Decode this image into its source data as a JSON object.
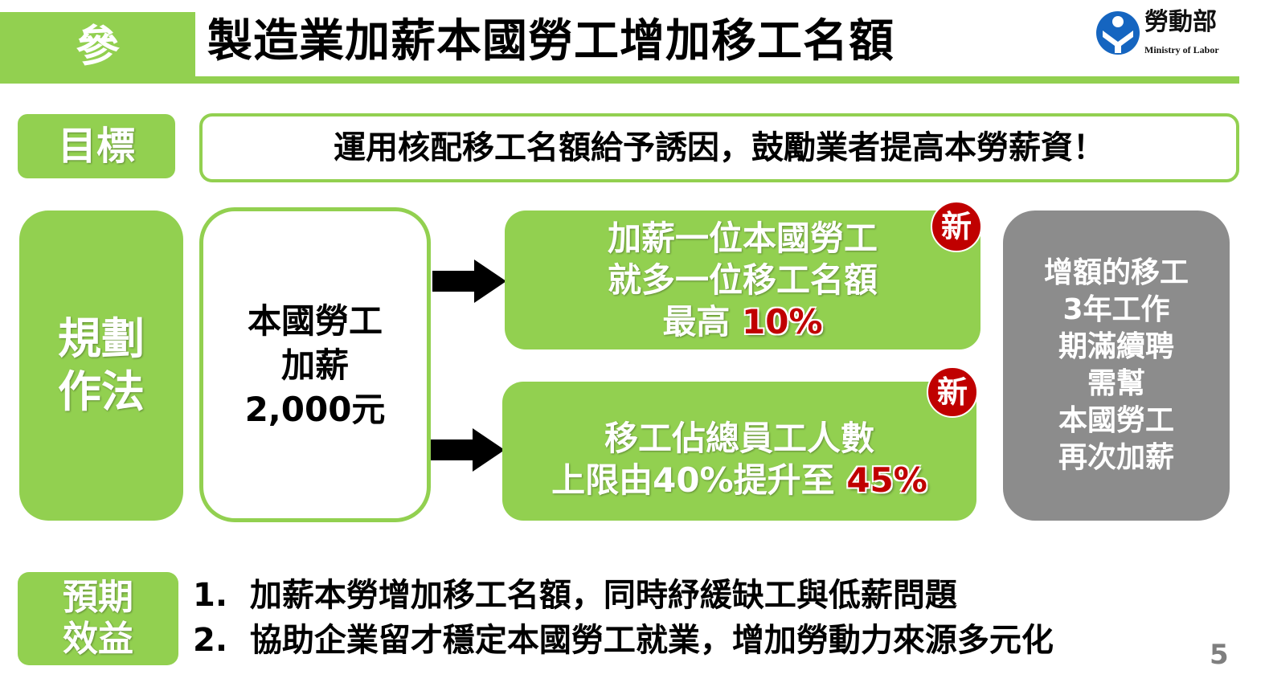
{
  "header": {
    "section_marker": "參",
    "title": "製造業加薪本國勞工增加移工名額",
    "logo": {
      "name_zh": "勞動部",
      "name_en": "Ministry of Labor"
    }
  },
  "goal": {
    "label": "目標",
    "text": "運用核配移工名額給予誘因，鼓勵業者提高本勞薪資！"
  },
  "plan": {
    "label_line1": "規劃",
    "label_line2": "作法",
    "source": {
      "line1": "本國勞工",
      "line2": "加薪",
      "line3": "2,000元"
    },
    "box1": {
      "line1": "加薪一位本國勞工",
      "line2": "就多一位移工名額",
      "line3_prefix": "最高 ",
      "line3_highlight": "10%",
      "badge": "新"
    },
    "box2": {
      "line1": "移工佔總員工人數",
      "line2_prefix": "上限由40%提升至 ",
      "line2_highlight": "45%",
      "badge": "新"
    },
    "note": {
      "lines": [
        "增額的移工",
        "3年工作",
        "期滿續聘",
        "需幫",
        "本國勞工",
        "再次加薪"
      ]
    }
  },
  "benefit": {
    "label_line1": "預期",
    "label_line2": "效益",
    "items": [
      "1.  加薪本勞增加移工名額，同時紓緩缺工與低薪問題",
      "2.  協助企業留才穩定本國勞工就業，增加勞動力來源多元化"
    ]
  },
  "page_number": "5",
  "colors": {
    "accent": "#92d050",
    "highlight": "#c00000",
    "note_bg": "#8c8c8c"
  }
}
